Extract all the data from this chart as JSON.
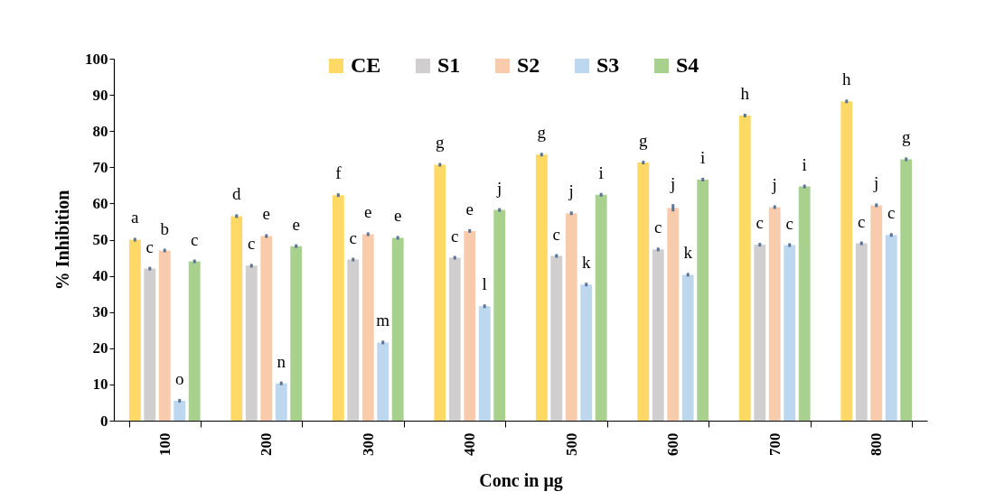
{
  "chart_data": {
    "type": "bar",
    "xlabel": "Conc in μg",
    "ylabel": "% Inhibition",
    "categories": [
      "100",
      "200",
      "300",
      "400",
      "500",
      "600",
      "700",
      "800"
    ],
    "ylim": [
      0,
      100
    ],
    "yticks": [
      0,
      10,
      20,
      30,
      40,
      50,
      60,
      70,
      80,
      90,
      100
    ],
    "grid": false,
    "legend": "top",
    "series": [
      {
        "name": "CE",
        "color": "#ffd966",
        "values": [
          50,
          56.5,
          62.3,
          70.7,
          73.5,
          71.3,
          84.3,
          88.2
        ],
        "errors": [
          0.5,
          0.5,
          0.5,
          0.5,
          0.5,
          0.5,
          0.5,
          0.5
        ],
        "value_labels": [
          "a",
          "d",
          "f",
          "g",
          "g",
          "g",
          "h",
          "h"
        ]
      },
      {
        "name": "S1",
        "color": "#d0cece",
        "values": [
          42,
          42.8,
          44.5,
          45,
          45.5,
          47.3,
          48.6,
          49
        ],
        "errors": [
          0.5,
          0.5,
          0.5,
          0.5,
          0.5,
          0.5,
          0.5,
          0.5
        ],
        "value_labels": [
          "c",
          "c",
          "c",
          "c",
          "c",
          "c",
          "c",
          "c"
        ]
      },
      {
        "name": "S2",
        "color": "#f8cbad",
        "values": [
          47,
          51,
          51.5,
          52.4,
          57.3,
          58.8,
          59,
          59.5
        ],
        "errors": [
          0.5,
          0.5,
          0.5,
          0.5,
          0.5,
          1,
          0.5,
          0.5
        ],
        "value_labels": [
          "b",
          "e",
          "e",
          "e",
          "j",
          "j",
          "j",
          "j"
        ]
      },
      {
        "name": "S3",
        "color": "#bdd7ee",
        "values": [
          5.5,
          10.3,
          21.6,
          31.6,
          37.6,
          40.3,
          48.5,
          51.3
        ],
        "errors": [
          0.5,
          0.5,
          0.5,
          0.5,
          0.5,
          0.5,
          0.5,
          0.5
        ],
        "value_labels": [
          "o",
          "n",
          "m",
          "l",
          "k",
          "k",
          "c",
          "c"
        ]
      },
      {
        "name": "S4",
        "color": "#a9d18e",
        "values": [
          44,
          48.2,
          50.5,
          58.2,
          62.4,
          66.6,
          64.7,
          72.2
        ],
        "errors": [
          0.5,
          0.5,
          0.5,
          0.5,
          0.5,
          0.5,
          0.5,
          0.5
        ],
        "value_labels": [
          "c",
          "e",
          "e",
          "j",
          "i",
          "i",
          "i",
          "g"
        ]
      }
    ]
  }
}
